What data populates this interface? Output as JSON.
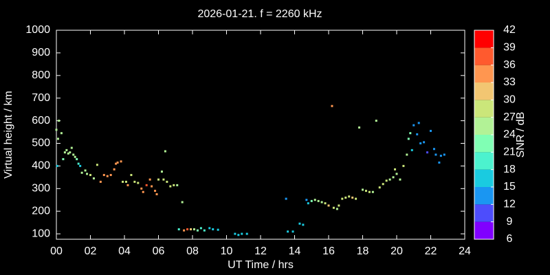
{
  "chart_data": {
    "type": "scatter",
    "title": "2026-01-21. f = 2260 kHz",
    "xlabel": "UT Time / hrs",
    "ylabel": "Virtual height / km",
    "colorbar_label": "SNR / dB",
    "xlim": [
      0,
      24
    ],
    "xticks": [
      {
        "value": 0,
        "label": "00"
      },
      {
        "value": 2,
        "label": "02"
      },
      {
        "value": 4,
        "label": "04"
      },
      {
        "value": 6,
        "label": "06"
      },
      {
        "value": 8,
        "label": "08"
      },
      10,
      12,
      14,
      16,
      18,
      20,
      22,
      24
    ],
    "ylim": [
      76,
      1000
    ],
    "yticks": [
      100,
      200,
      300,
      400,
      500,
      600,
      700,
      800,
      900,
      1000
    ],
    "clim": [
      6,
      42
    ],
    "cticks": [
      6,
      9,
      12,
      15,
      18,
      21,
      24,
      27,
      30,
      33,
      36,
      39,
      42
    ],
    "colormap": [
      "#8000ff",
      "#4d4dfc",
      "#1a96f2",
      "#1acbe0",
      "#4cf2ce",
      "#80ffb4",
      "#b2f296",
      "#cbe67a",
      "#f2c672",
      "#ff9650",
      "#ff5a2e",
      "#ff0000"
    ],
    "x": [
      0.0,
      0.05,
      0.1,
      0.15,
      0.3,
      0.4,
      0.5,
      0.6,
      0.7,
      0.8,
      0.9,
      1.0,
      1.1,
      1.2,
      1.3,
      1.4,
      1.5,
      1.7,
      1.8,
      2.0,
      2.2,
      2.4,
      2.6,
      2.8,
      3.0,
      3.2,
      3.4,
      3.5,
      3.6,
      3.8,
      3.9,
      4.1,
      4.2,
      4.4,
      4.6,
      4.8,
      5.0,
      5.1,
      5.3,
      5.5,
      5.6,
      5.8,
      5.9,
      6.0,
      6.2,
      6.3,
      6.4,
      6.5,
      6.7,
      6.9,
      7.1,
      7.4,
      7.2,
      7.5,
      7.7,
      7.9,
      8.1,
      8.3,
      8.5,
      8.7,
      9.0,
      9.2,
      9.5,
      10.5,
      10.7,
      10.9,
      11.2,
      13.5,
      13.6,
      13.9,
      14.3,
      14.5,
      14.7,
      14.8,
      15.0,
      15.2,
      15.4,
      15.6,
      15.8,
      16.0,
      16.2,
      16.3,
      16.5,
      16.6,
      16.8,
      17.0,
      17.2,
      17.4,
      17.6,
      17.8,
      18.0,
      18.2,
      18.4,
      18.6,
      18.8,
      19.0,
      19.2,
      19.4,
      19.6,
      19.8,
      19.9,
      20.0,
      20.2,
      20.4,
      20.6,
      20.7,
      20.8,
      20.9,
      21.0,
      21.2,
      21.3,
      21.4,
      21.6,
      21.8,
      22.0,
      22.2,
      22.3,
      22.5,
      22.6,
      22.8
    ],
    "y": [
      560,
      400,
      520,
      600,
      545,
      430,
      460,
      470,
      455,
      460,
      480,
      450,
      440,
      430,
      410,
      400,
      370,
      380,
      365,
      360,
      345,
      405,
      330,
      360,
      355,
      360,
      385,
      410,
      415,
      420,
      330,
      330,
      315,
      360,
      330,
      325,
      300,
      285,
      315,
      340,
      310,
      290,
      275,
      340,
      375,
      340,
      465,
      330,
      310,
      315,
      315,
      240,
      120,
      115,
      120,
      120,
      120,
      115,
      125,
      115,
      125,
      120,
      118,
      100,
      95,
      100,
      100,
      255,
      110,
      110,
      145,
      140,
      250,
      235,
      245,
      250,
      245,
      240,
      235,
      225,
      665,
      215,
      210,
      225,
      255,
      260,
      265,
      260,
      255,
      570,
      295,
      290,
      285,
      285,
      600,
      305,
      320,
      335,
      340,
      350,
      385,
      365,
      340,
      400,
      450,
      520,
      545,
      470,
      580,
      540,
      590,
      500,
      505,
      460,
      555,
      475,
      450,
      415,
      445,
      450
    ],
    "snr": [
      24,
      15,
      24,
      24,
      24,
      21,
      24,
      24,
      24,
      24,
      24,
      24,
      24,
      21,
      18,
      15,
      24,
      24,
      24,
      27,
      24,
      27,
      33,
      33,
      33,
      33,
      33,
      33,
      33,
      33,
      27,
      27,
      33,
      27,
      27,
      27,
      33,
      33,
      36,
      33,
      33,
      33,
      33,
      27,
      24,
      27,
      24,
      27,
      27,
      27,
      24,
      24,
      18,
      33,
      36,
      30,
      24,
      21,
      18,
      18,
      15,
      15,
      15,
      15,
      15,
      15,
      15,
      12,
      15,
      15,
      15,
      15,
      12,
      15,
      21,
      24,
      24,
      24,
      27,
      30,
      33,
      27,
      24,
      27,
      27,
      27,
      27,
      30,
      27,
      24,
      24,
      27,
      27,
      24,
      24,
      27,
      27,
      27,
      24,
      24,
      27,
      24,
      24,
      27,
      24,
      21,
      21,
      15,
      12,
      12,
      12,
      12,
      12,
      9,
      12,
      12,
      12,
      12,
      12,
      12
    ]
  }
}
